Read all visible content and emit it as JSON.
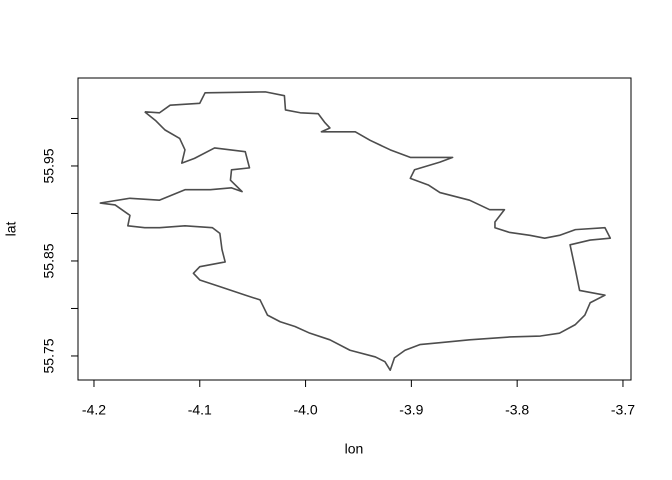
{
  "chart_data": {
    "type": "line",
    "xlabel": "lon",
    "ylabel": "lat",
    "color": "#4d4d4d",
    "xlim": [
      -4.2151,
      -3.6924
    ],
    "ylim": [
      55.7247,
      56.0426
    ],
    "xticks": [
      -4.2,
      -4.1,
      {
        "value": -4,
        "label": "-4.0"
      },
      -3.9,
      -3.8,
      -3.7
    ],
    "yticks": [
      55.75,
      {
        "value": 55.8,
        "label": null
      },
      55.85,
      {
        "value": 55.9,
        "label": null
      },
      55.95,
      {
        "value": 56,
        "label": null
      }
    ],
    "x": [
      -4.152,
      -4.138,
      -4.128,
      -4.1,
      -4.095,
      -4.038,
      -4.02,
      -4.019,
      -4.005,
      -3.988,
      -3.982,
      -3.977,
      -3.985,
      -3.968,
      -3.953,
      -3.939,
      -3.92,
      -3.901,
      -3.882,
      -3.861,
      -3.873,
      -3.897,
      -3.901,
      -3.884,
      -3.873,
      -3.845,
      -3.826,
      -3.812,
      -3.821,
      -3.821,
      -3.807,
      -3.788,
      -3.774,
      -3.76,
      -3.745,
      -3.717,
      -3.712,
      -3.731,
      -3.75,
      -3.745,
      -3.741,
      -3.717,
      -3.731,
      -3.736,
      -3.745,
      -3.76,
      -3.778,
      -3.807,
      -3.845,
      -3.873,
      -3.892,
      -3.906,
      -3.916,
      -3.92,
      -3.925,
      -3.934,
      -3.958,
      -3.977,
      -3.996,
      -4.01,
      -4.024,
      -4.036,
      -4.043,
      -4.057,
      -4.081,
      -4.1,
      -4.106,
      -4.1,
      -4.076,
      -4.079,
      -4.081,
      -4.088,
      -4.114,
      -4.138,
      -4.152,
      -4.168,
      -4.166,
      -4.18,
      -4.194,
      -4.166,
      -4.138,
      -4.114,
      -4.09,
      -4.07,
      -4.06,
      -4.071,
      -4.07,
      -4.053,
      -4.057,
      -4.086,
      -4.105,
      -4.117,
      -4.114,
      -4.119,
      -4.133,
      -4.142,
      -4.152
    ],
    "y": [
      56.007,
      56.006,
      56.014,
      56.016,
      56.027,
      56.028,
      56.024,
      56.009,
      56.006,
      56.005,
      55.996,
      55.99,
      55.986,
      55.986,
      55.986,
      55.977,
      55.967,
      55.959,
      55.959,
      55.959,
      55.954,
      55.946,
      55.937,
      55.93,
      55.922,
      55.914,
      55.904,
      55.904,
      55.891,
      55.885,
      55.88,
      55.877,
      55.874,
      55.877,
      55.883,
      55.885,
      55.874,
      55.872,
      55.867,
      55.841,
      55.819,
      55.814,
      55.806,
      55.793,
      55.783,
      55.774,
      55.771,
      55.77,
      55.767,
      55.764,
      55.762,
      55.756,
      55.748,
      55.735,
      55.744,
      55.749,
      55.756,
      55.767,
      55.774,
      55.781,
      55.786,
      55.793,
      55.809,
      55.814,
      55.823,
      55.83,
      55.837,
      55.844,
      55.849,
      55.862,
      55.879,
      55.885,
      55.887,
      55.885,
      55.885,
      55.887,
      55.898,
      55.909,
      55.911,
      55.916,
      55.914,
      55.925,
      55.925,
      55.927,
      55.923,
      55.935,
      55.946,
      55.948,
      55.965,
      55.969,
      55.958,
      55.953,
      55.967,
      55.979,
      55.988,
      55.998,
      56.007
    ]
  }
}
